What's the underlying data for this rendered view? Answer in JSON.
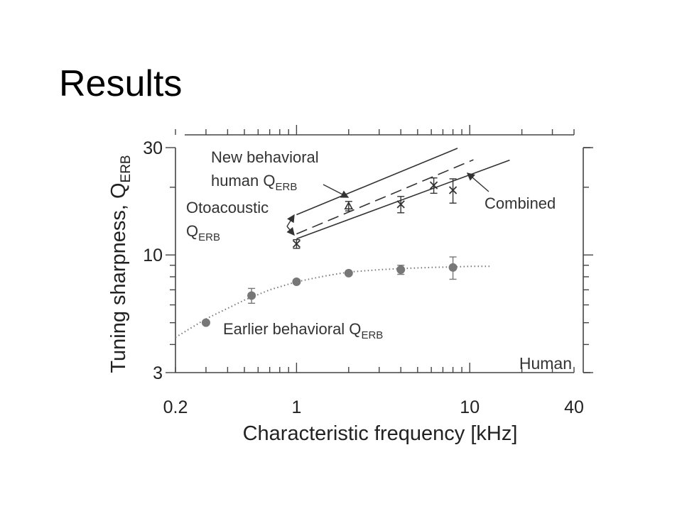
{
  "slide": {
    "title": "Results"
  },
  "chart_data": {
    "type": "scatter",
    "title": "",
    "xlabel": "Characteristic frequency [kHz]",
    "ylabel": "Tuning sharpness, Q",
    "ylabel_subscript": "ERB",
    "x_scale": "log",
    "y_scale": "log",
    "xlim": [
      0.2,
      40
    ],
    "ylim": [
      3,
      30
    ],
    "x_ticks": [
      0.2,
      1,
      10,
      40
    ],
    "x_tick_labels": [
      "0.2",
      "1",
      "10",
      "40"
    ],
    "y_ticks": [
      3,
      10,
      30
    ],
    "y_tick_labels": [
      "3",
      "10",
      "30"
    ],
    "grid": false,
    "panel_label": "Human",
    "colors": {
      "earlier": "#777777",
      "new": "#333333",
      "axes": "#444444"
    },
    "series": [
      {
        "name": "New behavioral human Q",
        "style": "solid",
        "x": [
          1,
          8.5
        ],
        "y": [
          15.1,
          29.8
        ]
      },
      {
        "name": "Otoacoustic Q",
        "style": "dashed",
        "x": [
          1,
          10.5
        ],
        "y": [
          12.4,
          26.5
        ]
      },
      {
        "name": "Combined",
        "style": "solid",
        "x": [
          1,
          17
        ],
        "y": [
          11.8,
          26.4
        ]
      },
      {
        "name": "Earlier behavioral Q",
        "style": "dotted",
        "x": [
          0.2,
          0.3,
          0.5,
          0.7,
          1,
          1.5,
          2,
          3,
          4,
          6,
          8,
          10,
          13
        ],
        "y": [
          4.3,
          5.2,
          6.3,
          7.0,
          7.6,
          8.1,
          8.4,
          8.6,
          8.7,
          8.8,
          8.85,
          8.9,
          8.9
        ]
      }
    ],
    "points": [
      {
        "group": "new",
        "marker": "x",
        "x": 1,
        "y": 11.2,
        "err": 0.5
      },
      {
        "group": "new",
        "marker": "triangle",
        "x": 2,
        "y": 16.5,
        "err": 0.8
      },
      {
        "group": "new",
        "marker": "x",
        "x": 4,
        "y": 16.8,
        "err": 1.4
      },
      {
        "group": "new",
        "marker": "x",
        "x": 6.2,
        "y": 20.4,
        "err": 1.6
      },
      {
        "group": "new",
        "marker": "x",
        "x": 8,
        "y": 19.4,
        "err": 2.4
      },
      {
        "group": "earlier",
        "marker": "dot",
        "x": 0.3,
        "y": 5.0,
        "err": 0
      },
      {
        "group": "earlier",
        "marker": "dot",
        "x": 0.55,
        "y": 6.6,
        "err": 0.5
      },
      {
        "group": "earlier",
        "marker": "dot",
        "x": 1,
        "y": 7.6,
        "err": 0
      },
      {
        "group": "earlier",
        "marker": "dot",
        "x": 2,
        "y": 8.3,
        "err": 0
      },
      {
        "group": "earlier",
        "marker": "dot",
        "x": 4,
        "y": 8.6,
        "err": 0.4
      },
      {
        "group": "earlier",
        "marker": "dot",
        "x": 8,
        "y": 8.8,
        "err": 1.0
      }
    ],
    "annotations": [
      {
        "id": "new",
        "lines": [
          "New behavioral",
          "human Q"
        ],
        "subscript": "ERB"
      },
      {
        "id": "oto",
        "lines": [
          "Otoacoustic",
          "Q"
        ],
        "subscript": "ERB"
      },
      {
        "id": "combined",
        "lines": [
          "Combined"
        ],
        "subscript": ""
      },
      {
        "id": "earlier",
        "lines": [
          "Earlier behavioral Q"
        ],
        "subscript": "ERB"
      }
    ]
  }
}
